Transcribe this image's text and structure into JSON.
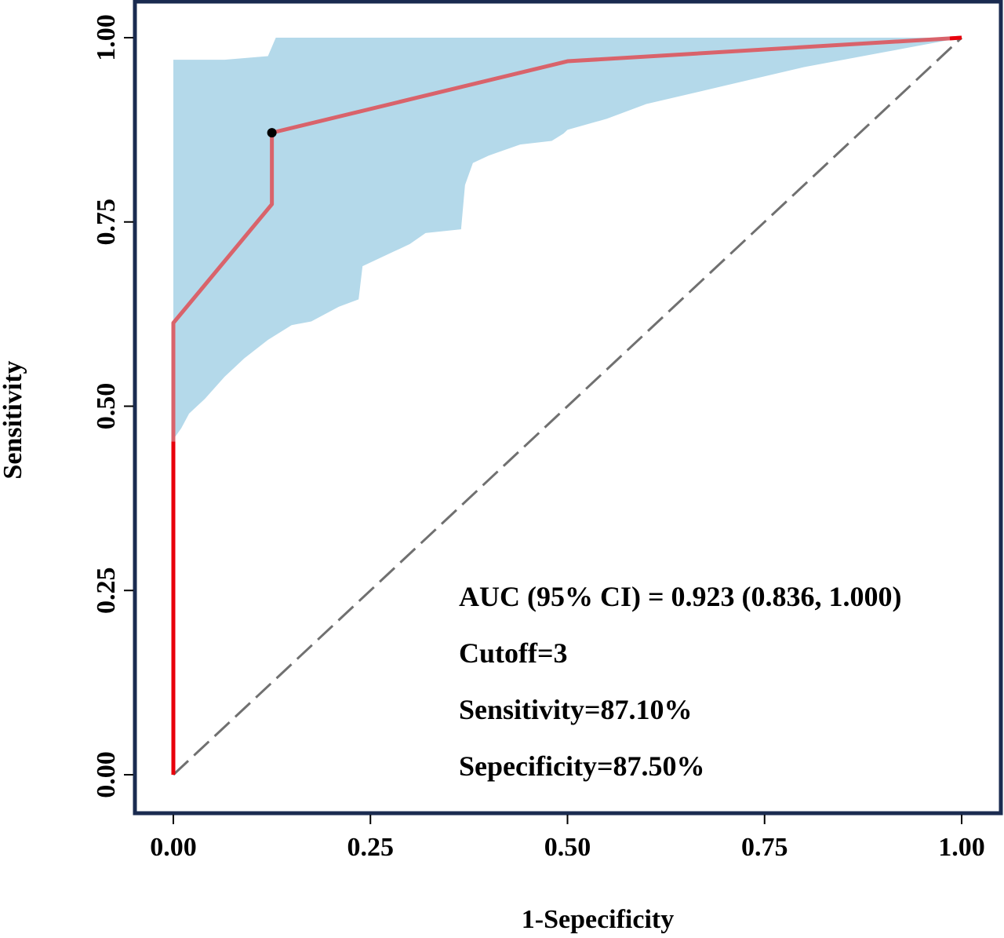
{
  "chart_data": {
    "type": "line",
    "xlabel": "1-Sepecificity",
    "ylabel": "Sensitivity",
    "xlim": [
      0,
      1
    ],
    "ylim": [
      0,
      1
    ],
    "x_ticks": [
      "0.00",
      "0.25",
      "0.50",
      "0.75",
      "1.00"
    ],
    "y_ticks": [
      "0.00",
      "0.25",
      "0.50",
      "0.75",
      "1.00"
    ],
    "grid": false,
    "legend": "none",
    "series": [
      {
        "kind": "roc_curve",
        "color": "#d9636b",
        "x": [
          0,
          0,
          0,
          0,
          0.125,
          0.125,
          0.5,
          1.0
        ],
        "y": [
          0,
          0.452,
          0.613,
          0.613,
          0.774,
          0.871,
          0.968,
          1.0
        ]
      },
      {
        "kind": "reference_diagonal",
        "color": "#707070",
        "dash": "dashed",
        "x": [
          0,
          1
        ],
        "y": [
          0,
          1
        ]
      }
    ],
    "highlight_segment": {
      "color": "#e8000b",
      "x": [
        0,
        0
      ],
      "y": [
        0,
        0.452
      ]
    },
    "confidence_band": {
      "color": "#b4d9ea",
      "upper": {
        "x": [
          0,
          0.065,
          0.12,
          0.13,
          0.13,
          1.0
        ],
        "y": [
          0.97,
          0.97,
          0.975,
          1.0,
          1.0,
          1.0
        ]
      },
      "lower": {
        "x": [
          0,
          0.01,
          0.02,
          0.04,
          0.065,
          0.09,
          0.12,
          0.15,
          0.175,
          0.21,
          0.235,
          0.24,
          0.28,
          0.3,
          0.32,
          0.365,
          0.37,
          0.38,
          0.4,
          0.44,
          0.48,
          0.495,
          0.5,
          0.55,
          0.6,
          0.7,
          0.8,
          0.9,
          1.0
        ],
        "y": [
          0.455,
          0.47,
          0.49,
          0.51,
          0.54,
          0.565,
          0.59,
          0.61,
          0.615,
          0.635,
          0.645,
          0.69,
          0.71,
          0.72,
          0.735,
          0.74,
          0.8,
          0.83,
          0.84,
          0.855,
          0.86,
          0.87,
          0.875,
          0.89,
          0.91,
          0.935,
          0.96,
          0.98,
          1.0
        ]
      }
    },
    "optimal_point": {
      "x": 0.125,
      "y": 0.871,
      "color": "#000000"
    },
    "annotations": [
      "AUC (95% CI) = 0.923 (0.836, 1.000)",
      "Cutoff=3",
      "Sensitivity=87.10%",
      "Sepecificity=87.50%"
    ],
    "frame_color": "#1a2b50"
  }
}
